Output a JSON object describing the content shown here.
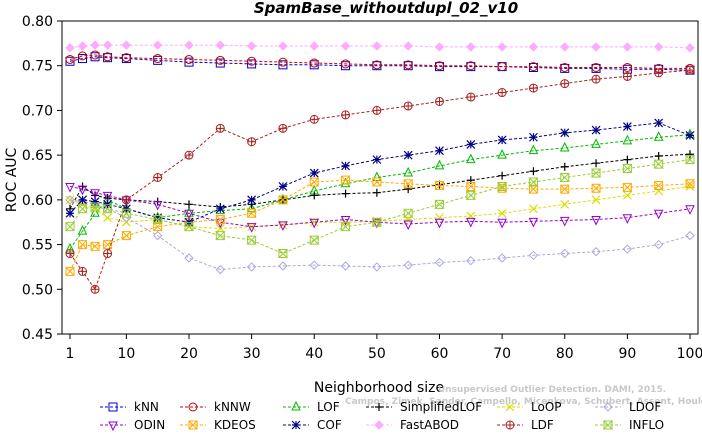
{
  "chart_data": {
    "type": "line",
    "title": "SpamBase_withoutdupl_02_v10",
    "xlabel": "Neighborhood size",
    "ylabel": "ROC AUC",
    "xlim": [
      1,
      100
    ],
    "ylim": [
      0.45,
      0.8
    ],
    "xticks": [
      "1",
      "10",
      "20",
      "30",
      "40",
      "50",
      "60",
      "70",
      "80",
      "90",
      "100"
    ],
    "yticks": [
      "0.45",
      "0.50",
      "0.55",
      "0.60",
      "0.65",
      "0.70",
      "0.75",
      "0.80"
    ],
    "grid": false,
    "legend_position": "bottom",
    "watermark_lines": [
      "Campos, Zimek, Sander, Campello, Micenkova, Schubert, Assent, Houle",
      "Unsupervised Outlier Detection. DAMI, 2015."
    ],
    "x": [
      1,
      3,
      5,
      7,
      10,
      15,
      20,
      25,
      30,
      35,
      40,
      45,
      50,
      55,
      60,
      65,
      70,
      75,
      80,
      85,
      90,
      95,
      100
    ],
    "series": [
      {
        "name": "kNN",
        "color": "#0000cc",
        "marker": "square",
        "values": [
          0.755,
          0.758,
          0.76,
          0.759,
          0.758,
          0.756,
          0.754,
          0.753,
          0.752,
          0.751,
          0.751,
          0.75,
          0.75,
          0.75,
          0.749,
          0.749,
          0.749,
          0.748,
          0.747,
          0.747,
          0.746,
          0.746,
          0.745
        ]
      },
      {
        "name": "kNNW",
        "color": "#cc0000",
        "marker": "circle",
        "values": [
          0.757,
          0.761,
          0.762,
          0.76,
          0.759,
          0.758,
          0.757,
          0.756,
          0.755,
          0.754,
          0.753,
          0.752,
          0.751,
          0.751,
          0.75,
          0.75,
          0.749,
          0.749,
          0.748,
          0.748,
          0.748,
          0.747,
          0.747
        ]
      },
      {
        "name": "LOF",
        "color": "#00bb00",
        "marker": "triangle-up",
        "values": [
          0.545,
          0.565,
          0.585,
          0.6,
          0.59,
          0.58,
          0.585,
          0.588,
          0.59,
          0.6,
          0.61,
          0.618,
          0.625,
          0.63,
          0.638,
          0.645,
          0.65,
          0.655,
          0.658,
          0.662,
          0.666,
          0.67,
          0.673
        ]
      },
      {
        "name": "SimplifiedLOF",
        "color": "#000000",
        "marker": "plus",
        "values": [
          0.59,
          0.615,
          0.605,
          0.602,
          0.6,
          0.598,
          0.595,
          0.592,
          0.595,
          0.6,
          0.605,
          0.607,
          0.608,
          0.612,
          0.617,
          0.622,
          0.627,
          0.632,
          0.637,
          0.641,
          0.645,
          0.649,
          0.651
        ]
      },
      {
        "name": "LoOP",
        "color": "#dddd00",
        "marker": "x",
        "values": [
          0.6,
          0.595,
          0.59,
          0.58,
          0.575,
          0.578,
          0.57,
          0.568,
          0.57,
          0.572,
          0.575,
          0.575,
          0.576,
          0.578,
          0.58,
          0.582,
          0.585,
          0.59,
          0.595,
          0.6,
          0.605,
          0.61,
          0.615
        ]
      },
      {
        "name": "LDOF",
        "color": "#aaaadd",
        "marker": "diamond",
        "values": [
          0.6,
          0.598,
          0.595,
          0.59,
          0.58,
          0.56,
          0.535,
          0.522,
          0.525,
          0.526,
          0.527,
          0.526,
          0.525,
          0.527,
          0.53,
          0.532,
          0.535,
          0.538,
          0.54,
          0.542,
          0.545,
          0.55,
          0.56
        ]
      },
      {
        "name": "ODIN",
        "color": "#9900cc",
        "marker": "triangle-down",
        "values": [
          0.615,
          0.612,
          0.608,
          0.605,
          0.6,
          0.595,
          0.585,
          0.575,
          0.57,
          0.572,
          0.575,
          0.578,
          0.575,
          0.573,
          0.575,
          0.576,
          0.575,
          0.576,
          0.577,
          0.578,
          0.58,
          0.585,
          0.59
        ]
      },
      {
        "name": "KDEOS",
        "color": "#ffaa00",
        "marker": "square-x",
        "values": [
          0.52,
          0.55,
          0.548,
          0.55,
          0.56,
          0.57,
          0.575,
          0.578,
          0.585,
          0.6,
          0.62,
          0.622,
          0.62,
          0.618,
          0.616,
          0.615,
          0.613,
          0.612,
          0.612,
          0.613,
          0.614,
          0.616,
          0.618
        ]
      },
      {
        "name": "COF",
        "color": "#000088",
        "marker": "asterisk",
        "values": [
          0.585,
          0.6,
          0.598,
          0.595,
          0.59,
          0.58,
          0.575,
          0.59,
          0.6,
          0.615,
          0.63,
          0.638,
          0.645,
          0.65,
          0.655,
          0.662,
          0.667,
          0.67,
          0.675,
          0.678,
          0.682,
          0.686,
          0.672
        ]
      },
      {
        "name": "FastABOD",
        "color": "#ffaaff",
        "marker": "diamond-filled",
        "values": [
          0.77,
          0.772,
          0.773,
          0.773,
          0.773,
          0.773,
          0.773,
          0.773,
          0.772,
          0.772,
          0.772,
          0.772,
          0.772,
          0.772,
          0.771,
          0.771,
          0.771,
          0.771,
          0.771,
          0.771,
          0.771,
          0.771,
          0.77
        ]
      },
      {
        "name": "LDF",
        "color": "#aa2222",
        "marker": "circle-plus",
        "values": [
          0.54,
          0.52,
          0.5,
          0.54,
          0.6,
          0.625,
          0.65,
          0.68,
          0.665,
          0.68,
          0.69,
          0.695,
          0.7,
          0.705,
          0.71,
          0.715,
          0.72,
          0.725,
          0.73,
          0.735,
          0.738,
          0.742,
          0.745
        ]
      },
      {
        "name": "INFLO",
        "color": "#99cc33",
        "marker": "hourglass",
        "values": [
          0.57,
          0.59,
          0.592,
          0.59,
          0.585,
          0.578,
          0.57,
          0.56,
          0.555,
          0.54,
          0.555,
          0.57,
          0.575,
          0.585,
          0.595,
          0.605,
          0.615,
          0.62,
          0.625,
          0.63,
          0.635,
          0.64,
          0.645
        ]
      }
    ]
  }
}
